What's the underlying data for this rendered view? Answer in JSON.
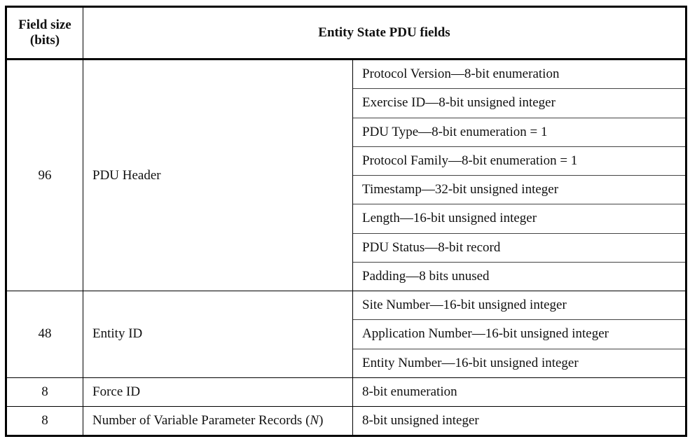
{
  "header": {
    "col_size": "Field size (bits)",
    "col_fields": "Entity State PDU fields"
  },
  "groups": [
    {
      "size": "96",
      "name": "PDU Header",
      "fields": [
        "Protocol Version—8-bit enumeration",
        "Exercise ID—8-bit unsigned integer",
        "PDU Type—8-bit enumeration = 1",
        "Protocol Family—8-bit enumeration = 1",
        "Timestamp—32-bit unsigned integer",
        "Length—16-bit unsigned integer",
        "PDU Status—8-bit record",
        "Padding—8 bits unused"
      ]
    },
    {
      "size": "48",
      "name": "Entity ID",
      "fields": [
        "Site Number—16-bit unsigned integer",
        "Application Number—16-bit unsigned integer",
        "Entity Number—16-bit unsigned integer"
      ]
    },
    {
      "size": "8",
      "name": "Force ID",
      "fields": [
        "8-bit enumeration"
      ]
    },
    {
      "size": "8",
      "name_prefix": "Number of Variable Parameter Records (",
      "name_var": "N",
      "name_suffix": ")",
      "fields": [
        "8-bit unsigned integer"
      ]
    }
  ]
}
